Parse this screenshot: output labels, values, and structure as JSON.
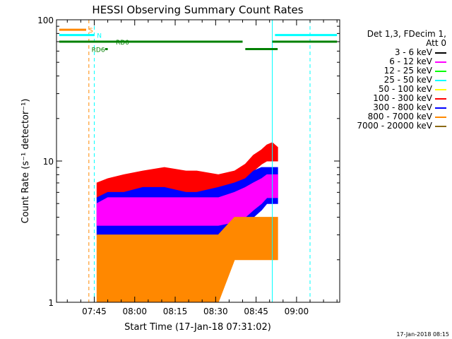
{
  "chart_data": {
    "type": "line",
    "title": "HESSI Observing Summary Count Rates",
    "xlabel": "Start Time (17-Jan-18 07:31:02)",
    "ylabel": "Count Rate (s⁻¹ detector⁻¹)",
    "yscale": "log",
    "ylim": [
      1,
      100
    ],
    "xlim_minutes_after_0731": [
      0,
      105
    ],
    "xtick_labels": [
      "07:45",
      "08:00",
      "08:15",
      "08:30",
      "08:45",
      "09:00"
    ],
    "xtick_minutes_after_0731": [
      14,
      29,
      44,
      59,
      74,
      89
    ],
    "ytick_labels": [
      "1",
      "10",
      "100"
    ],
    "ytick_values": [
      1,
      10,
      100
    ],
    "legend_header": [
      "Det 1,3, FDecim 1,",
      "Att 0"
    ],
    "series": [
      {
        "name": "3 - 6 keV",
        "color": "#000000"
      },
      {
        "name": "6 - 12 keV",
        "color": "#ff00ff"
      },
      {
        "name": "12 - 25 keV",
        "color": "#00ff00"
      },
      {
        "name": "25 - 50 keV",
        "color": "#00ffff"
      },
      {
        "name": "50 - 100 keV",
        "color": "#ffff00"
      },
      {
        "name": "100 - 300 keV",
        "color": "#ff0000"
      },
      {
        "name": "300 - 800 keV",
        "color": "#0000ff"
      },
      {
        "name": "800 - 7000 keV",
        "color": "#ff8800"
      },
      {
        "name": "7000 - 20000 keV",
        "color": "#8b6914"
      }
    ],
    "bands_time_minutes": [
      15,
      19,
      25,
      32,
      40,
      48,
      52,
      60,
      66,
      70,
      73,
      76,
      78,
      80,
      82
    ],
    "bands": [
      {
        "name": "100 - 300 keV",
        "color": "#ff0000",
        "low": [
          5.5,
          6.0,
          6.0,
          6.5,
          6.5,
          6.0,
          6.0,
          6.5,
          7.0,
          7.5,
          8.5,
          9.5,
          10.0,
          10.0,
          10.0
        ],
        "high": [
          7.0,
          7.5,
          8.0,
          8.5,
          9.0,
          8.5,
          8.5,
          8.0,
          8.5,
          9.5,
          11.0,
          12.0,
          13.0,
          13.5,
          12.5
        ]
      },
      {
        "name": "300 - 800 keV",
        "color": "#0000ff",
        "low": [
          3.0,
          3.0,
          3.0,
          3.0,
          3.0,
          3.0,
          3.0,
          3.0,
          3.2,
          3.5,
          4.0,
          4.5,
          5.0,
          5.0,
          5.0
        ],
        "high": [
          5.5,
          6.0,
          6.0,
          6.5,
          6.5,
          6.0,
          6.0,
          6.5,
          7.0,
          7.5,
          8.5,
          9.0,
          9.0,
          9.0,
          9.0
        ]
      },
      {
        "name": "6 - 12 keV",
        "color": "#ff00ff",
        "low": [
          3.5,
          3.5,
          3.5,
          3.5,
          3.5,
          3.5,
          3.5,
          3.5,
          3.7,
          4.0,
          4.5,
          5.0,
          5.5,
          5.5,
          5.5
        ],
        "high": [
          5.0,
          5.5,
          5.5,
          5.5,
          5.5,
          5.5,
          5.5,
          5.5,
          6.0,
          6.5,
          7.0,
          7.5,
          8.0,
          8.0,
          8.0
        ]
      },
      {
        "name": "800 - 7000 keV",
        "color": "#ff8800",
        "low": [
          1.0,
          1.0,
          1.0,
          1.0,
          1.0,
          1.0,
          1.0,
          1.0,
          2.0,
          2.0,
          2.0,
          2.0,
          2.0,
          2.0,
          2.0
        ],
        "high": [
          3.0,
          3.0,
          3.0,
          3.0,
          3.0,
          3.0,
          3.0,
          3.0,
          4.0,
          4.0,
          4.0,
          4.0,
          4.0,
          4.0,
          4.0
        ]
      }
    ],
    "flag_bars": [
      {
        "label": "S",
        "color": "#ff8800",
        "y": 85,
        "segments": [
          [
            1,
            11
          ]
        ],
        "label_at": 12
      },
      {
        "label": "N",
        "color": "#00ffff",
        "y": 78,
        "segments": [
          [
            1,
            14
          ],
          [
            81,
            104
          ]
        ],
        "label_at": 15
      },
      {
        "label": "RD0",
        "color": "#008000",
        "y": 70,
        "segments": [
          [
            1,
            69
          ],
          [
            80,
            104
          ]
        ],
        "label_at": 22
      },
      {
        "label": "RD6",
        "color": "#008000",
        "y": 62,
        "segments": [
          [
            18,
            19
          ],
          [
            70,
            82
          ]
        ],
        "label_at": 13
      }
    ],
    "vlines": [
      {
        "t": 0,
        "color": "#00ffff",
        "dash": false
      },
      {
        "t": 12,
        "color": "#ff8800",
        "dash": true
      },
      {
        "t": 14,
        "color": "#00ffff",
        "dash": true
      },
      {
        "t": 80,
        "color": "#00ffff",
        "dash": false
      },
      {
        "t": 94,
        "color": "#00ffff",
        "dash": true
      }
    ],
    "footer_timestamp": "17-Jan-2018 08:15"
  }
}
